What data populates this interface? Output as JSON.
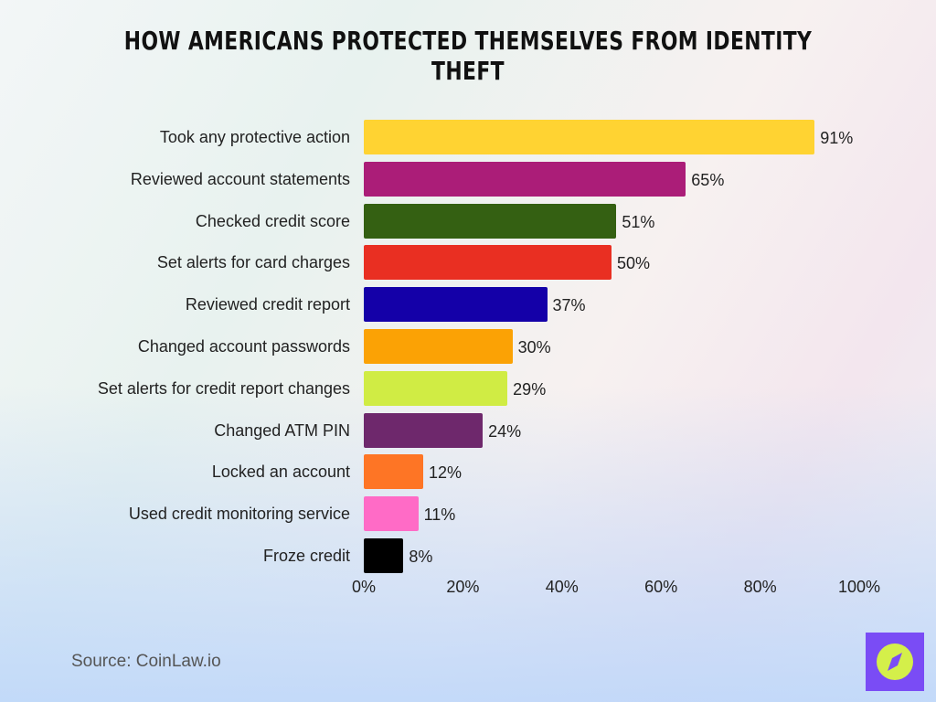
{
  "title": "How Americans Protected Themselves from Identity Theft",
  "source": "Source: CoinLaw.io",
  "logo": {
    "icon": "compass-icon",
    "bg_color": "#7a4cf5",
    "fg_color": "#d4ef4a"
  },
  "axis": {
    "ticks": [
      "0%",
      "20%",
      "40%",
      "60%",
      "80%",
      "100%"
    ]
  },
  "bars": [
    {
      "label": "Took any protective action",
      "value": 91,
      "display": "91%",
      "color": "#ffd332"
    },
    {
      "label": "Reviewed account statements",
      "value": 65,
      "display": "65%",
      "color": "#ab1d78"
    },
    {
      "label": "Checked credit score",
      "value": 51,
      "display": "51%",
      "color": "#346012"
    },
    {
      "label": "Set alerts for card charges",
      "value": 50,
      "display": "50%",
      "color": "#e92f22"
    },
    {
      "label": "Reviewed credit report",
      "value": 37,
      "display": "37%",
      "color": "#1400a8"
    },
    {
      "label": "Changed account passwords",
      "value": 30,
      "display": "30%",
      "color": "#fba205"
    },
    {
      "label": "Set alerts for credit report changes",
      "value": 29,
      "display": "29%",
      "color": "#d0ec44"
    },
    {
      "label": "Changed ATM PIN",
      "value": 24,
      "display": "24%",
      "color": "#6e286c"
    },
    {
      "label": "Locked an account",
      "value": 12,
      "display": "12%",
      "color": "#fe7525"
    },
    {
      "label": "Used credit monitoring service",
      "value": 11,
      "display": "11%",
      "color": "#ff6bc6"
    },
    {
      "label": "Froze credit",
      "value": 8,
      "display": "8%",
      "color": "#000000"
    }
  ],
  "chart_data": {
    "type": "bar",
    "orientation": "horizontal",
    "title": "How Americans Protected Themselves from Identity Theft",
    "categories": [
      "Took any protective action",
      "Reviewed account statements",
      "Checked credit score",
      "Set alerts for card charges",
      "Reviewed credit report",
      "Changed account passwords",
      "Set alerts for credit report changes",
      "Changed ATM PIN",
      "Locked an account",
      "Used credit monitoring service",
      "Froze credit"
    ],
    "values": [
      91,
      65,
      51,
      50,
      37,
      30,
      29,
      24,
      12,
      11,
      8
    ],
    "xlabel": "",
    "ylabel": "",
    "xlim": [
      0,
      100
    ],
    "x_ticks": [
      "0%",
      "20%",
      "40%",
      "60%",
      "80%",
      "100%"
    ],
    "grid": false,
    "legend": null,
    "data_labels": true,
    "source": "Source: CoinLaw.io"
  }
}
